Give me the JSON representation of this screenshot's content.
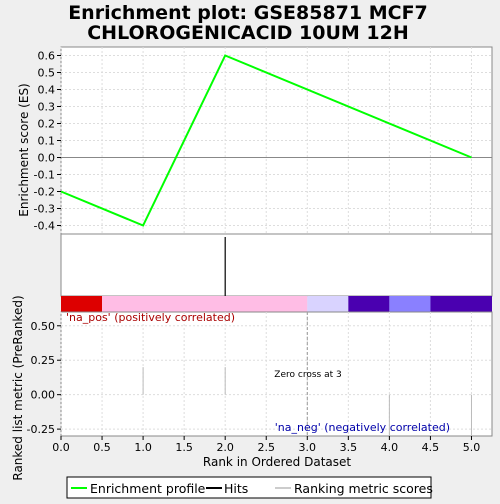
{
  "title_line1": "Enrichment plot: GSE85871 MCF7",
  "title_line2": "CHLOROGENICACID 10UM 12H",
  "chart_data": {
    "type": "line",
    "top_panel": {
      "ylabel": "Enrichment score (ES)",
      "ylim": [
        -0.45,
        0.65
      ],
      "yticks": [
        -0.4,
        -0.3,
        -0.2,
        -0.1,
        0.0,
        0.1,
        0.2,
        0.3,
        0.4,
        0.5,
        0.6
      ],
      "ytick_labels": [
        "-0.4",
        "-0.3",
        "-0.2",
        "-0.1",
        "0.0",
        "0.1",
        "0.2",
        "0.3",
        "0.4",
        "0.5",
        "0.6"
      ],
      "series": [
        {
          "name": "Enrichment profile",
          "color": "#00ff00",
          "x": [
            0,
            1,
            2,
            5
          ],
          "y": [
            -0.2,
            -0.4,
            0.6,
            0.0
          ]
        }
      ]
    },
    "hits": {
      "x": [
        2
      ],
      "color": "#000000"
    },
    "color_bar": {
      "segments": [
        {
          "from": 0.0,
          "to": 0.5,
          "color": "#dd0000"
        },
        {
          "from": 0.5,
          "to": 3.0,
          "color": "#ffbde5"
        },
        {
          "from": 3.0,
          "to": 3.5,
          "color": "#d9d3ff"
        },
        {
          "from": 3.5,
          "to": 4.0,
          "color": "#4a00b0"
        },
        {
          "from": 4.0,
          "to": 4.5,
          "color": "#8a80ff"
        },
        {
          "from": 4.5,
          "to": 5.25,
          "color": "#4a00b0"
        }
      ]
    },
    "bottom_panel": {
      "ylabel": "Ranked list metric (PreRanked)",
      "xlabel": "Rank in Ordered Dataset",
      "ylim": [
        -0.3,
        0.6
      ],
      "yticks": [
        -0.25,
        0.0,
        0.25,
        0.5
      ],
      "ytick_labels": [
        "-0.25",
        "0.00",
        "0.25",
        "0.50"
      ],
      "xlim": [
        0,
        5.25
      ],
      "xticks": [
        0.0,
        0.5,
        1.0,
        1.5,
        2.0,
        2.5,
        3.0,
        3.5,
        4.0,
        4.5,
        5.0
      ],
      "xtick_labels": [
        "0.0",
        "0.5",
        "1.0",
        "1.5",
        "2.0",
        "2.5",
        "3.0",
        "3.5",
        "4.0",
        "4.5",
        "5.0"
      ],
      "metric_x": [
        1,
        2,
        4,
        5
      ],
      "metric_y": [
        0.2,
        0.2,
        -0.3,
        -0.3
      ],
      "zero_cross_x": 3,
      "annotations": {
        "pos_label": "'na_pos' (positively correlated)",
        "neg_label": "'na_neg' (negatively correlated)",
        "zero_cross": "Zero cross at 3"
      }
    },
    "legend": {
      "placement": "bottom",
      "items": [
        "Enrichment profile",
        "Hits",
        "Ranking metric scores"
      ]
    }
  },
  "colors": {
    "pos_label": "#aa0000",
    "neg_label": "#0000aa",
    "grid": "#dddddd"
  }
}
